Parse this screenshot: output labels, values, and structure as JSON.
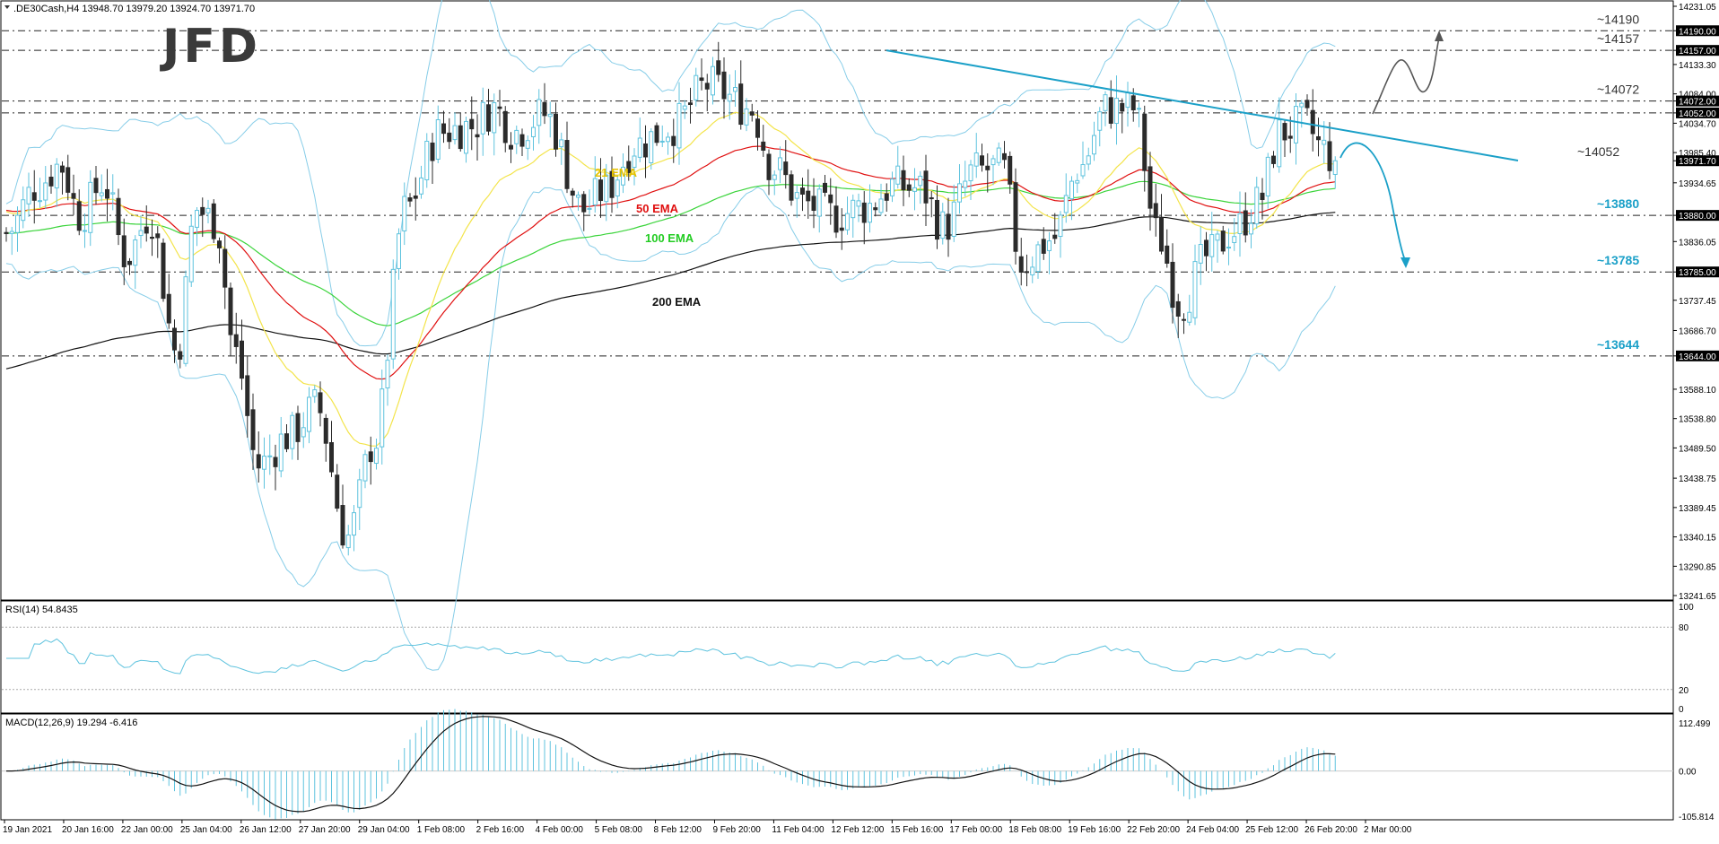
{
  "header": {
    "symbol_info": ".DE30Cash,H4  13948.70 13979.20 13924.70 13971.70",
    "logo": "JFD"
  },
  "chart_data": {
    "type": "candlestick",
    "symbol": ".DE30Cash",
    "timeframe": "H4",
    "ohlc": {
      "open": 13948.7,
      "high": 13979.2,
      "low": 13924.7,
      "close": 13971.7
    },
    "ylim": [
      13241.65,
      14231.05
    ],
    "y_ticks": [
      "14231.05",
      "14190.00",
      "14157.00",
      "14133.30",
      "14084.00",
      "14072.00",
      "14052.00",
      "14034.70",
      "13985.40",
      "13971.70",
      "13934.65",
      "13880.00",
      "13836.05",
      "13785.00",
      "13737.45",
      "13686.70",
      "13644.00",
      "13588.10",
      "13538.80",
      "13489.50",
      "13438.75",
      "13389.45",
      "13340.15",
      "13290.85",
      "13241.65"
    ],
    "highlighted_ticks": [
      "14190.00",
      "14157.00",
      "14072.00",
      "14052.00",
      "13971.70",
      "13880.00",
      "13785.00",
      "13644.00"
    ],
    "x_ticks": [
      "19 Jan 2021",
      "20 Jan 16:00",
      "22 Jan 00:00",
      "25 Jan 04:00",
      "26 Jan 12:00",
      "27 Jan 20:00",
      "29 Jan 04:00",
      "1 Feb 08:00",
      "2 Feb 16:00",
      "4 Feb 00:00",
      "5 Feb 08:00",
      "8 Feb 12:00",
      "9 Feb 20:00",
      "11 Feb 04:00",
      "12 Feb 12:00",
      "15 Feb 16:00",
      "17 Feb 00:00",
      "18 Feb 08:00",
      "19 Feb 16:00",
      "22 Feb 20:00",
      "24 Feb 04:00",
      "25 Feb 12:00",
      "26 Feb 20:00",
      "2 Mar 00:00"
    ],
    "levels": [
      {
        "label": "~14190",
        "value": 14190,
        "color": "#333333"
      },
      {
        "label": "~14157",
        "value": 14157,
        "color": "#333333"
      },
      {
        "label": "~14072",
        "value": 14072,
        "color": "#333333"
      },
      {
        "label": "~14052",
        "value": 14052,
        "color": "#333333"
      },
      {
        "label": "~13880",
        "value": 13880,
        "color": "#1ba0c8"
      },
      {
        "label": "~13785",
        "value": 13785,
        "color": "#1ba0c8"
      },
      {
        "label": "~13644",
        "value": 13644,
        "color": "#1ba0c8"
      }
    ],
    "ema_labels": [
      {
        "label": "21 EMA",
        "color": "#e6c200"
      },
      {
        "label": "50 EMA",
        "color": "#e01010"
      },
      {
        "label": "100 EMA",
        "color": "#22cc22"
      },
      {
        "label": "200 EMA",
        "color": "#111111"
      }
    ],
    "colors": {
      "bull": "#5fc3de",
      "bear": "#2b2b2b",
      "bollinger": "#87cde8",
      "trendline": "#1ba0c8",
      "ema21": "#f3e44a",
      "ema50": "#e01010",
      "ema100": "#3bd43b",
      "ema200": "#111111"
    },
    "rsi": {
      "label": "RSI(14) 54.8435",
      "ticks": [
        "100",
        "80",
        "20",
        "0"
      ],
      "value": 54.8435
    },
    "macd": {
      "label": "MACD(12,26,9) 19.294 -6.416",
      "ticks": [
        "112.499",
        "0.00",
        "-105.814"
      ],
      "main": 19.294,
      "signal": -6.416
    }
  }
}
